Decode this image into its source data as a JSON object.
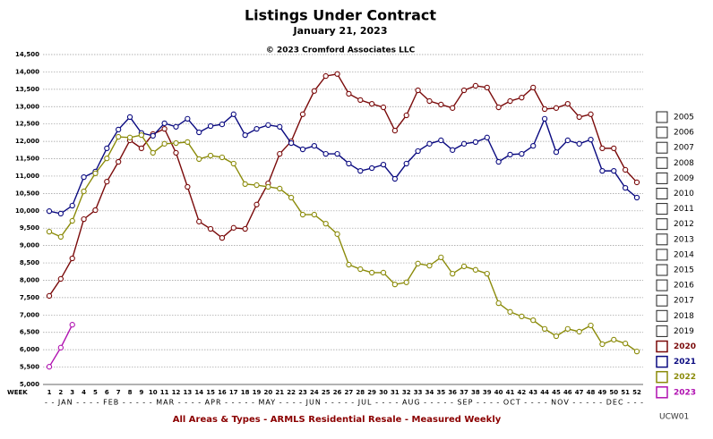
{
  "chart_data": {
    "type": "line",
    "title": "Listings Under Contract",
    "subtitle": "January 21, 2023",
    "copyright": "© 2023 Cromford Associates LLC",
    "footer": "All Areas & Types - ARMLS Residential Resale - Measured Weekly",
    "code": "UCW01",
    "x_label": "WEEK",
    "month_line": "- - JAN - - - - FEB - - - - - MAR - - - - APR - - - - - MAY - - - - JUN - - - - - JUL - - - - AUG - - - - - SEP - - - - OCT - - - - NOV - - - - - DEC - - -",
    "x": [
      1,
      2,
      3,
      4,
      5,
      6,
      7,
      8,
      9,
      10,
      11,
      12,
      13,
      14,
      15,
      16,
      17,
      18,
      19,
      20,
      21,
      22,
      23,
      24,
      25,
      26,
      27,
      28,
      29,
      30,
      31,
      32,
      33,
      34,
      35,
      36,
      37,
      38,
      39,
      40,
      41,
      42,
      43,
      44,
      45,
      46,
      47,
      48,
      49,
      50,
      51,
      52
    ],
    "xlim": [
      1,
      52
    ],
    "ylim": [
      5000,
      14500
    ],
    "yticks": [
      {
        "value": 5000,
        "label": "5,000"
      },
      {
        "value": 5500,
        "label": "5,500"
      },
      {
        "value": 6000,
        "label": "6,000"
      },
      {
        "value": 6500,
        "label": "6,500"
      },
      {
        "value": 7000,
        "label": "7,000"
      },
      {
        "value": 7500,
        "label": "7,500"
      },
      {
        "value": 8000,
        "label": "8,000"
      },
      {
        "value": 8500,
        "label": "8,500"
      },
      {
        "value": 9000,
        "label": "9,000"
      },
      {
        "value": 9500,
        "label": "9,500"
      },
      {
        "value": 10000,
        "label": "10,000"
      },
      {
        "value": 10500,
        "label": "10,500"
      },
      {
        "value": 11000,
        "label": "11,000"
      },
      {
        "value": 11500,
        "label": "11,500"
      },
      {
        "value": 12000,
        "label": "12,000"
      },
      {
        "value": 12500,
        "label": "12,500"
      },
      {
        "value": 13000,
        "label": "13,000"
      },
      {
        "value": 13500,
        "label": "13,500"
      },
      {
        "value": 14000,
        "label": "14,000"
      },
      {
        "value": 14500,
        "label": "14,500"
      }
    ],
    "grid": true,
    "legend_inactive": [
      "2005",
      "2006",
      "2007",
      "2008",
      "2009",
      "2010",
      "2011",
      "2012",
      "2013",
      "2014",
      "2015",
      "2016",
      "2017",
      "2018",
      "2019"
    ],
    "series": [
      {
        "name": "2020",
        "color": "#7a0a0a",
        "values": [
          7550,
          8040,
          8630,
          9760,
          10020,
          10840,
          11410,
          12030,
          11800,
          12210,
          12360,
          11670,
          10690,
          9690,
          9480,
          9220,
          9510,
          9480,
          10180,
          10790,
          11640,
          12000,
          12780,
          13450,
          13880,
          13940,
          13370,
          13190,
          13080,
          12980,
          12310,
          12750,
          13470,
          13160,
          13060,
          12960,
          13470,
          13600,
          13550,
          12980,
          13160,
          13260,
          13550,
          12930,
          12960,
          13080,
          12700,
          12780,
          11800,
          11800,
          11180,
          10820
        ]
      },
      {
        "name": "2021",
        "color": "#0a0a80",
        "values": [
          9990,
          9920,
          10150,
          10970,
          11130,
          11800,
          12340,
          12700,
          12240,
          12160,
          12520,
          12420,
          12650,
          12260,
          12440,
          12490,
          12780,
          12180,
          12360,
          12470,
          12420,
          11950,
          11770,
          11870,
          11640,
          11640,
          11360,
          11150,
          11230,
          11330,
          10920,
          11360,
          11720,
          11930,
          12030,
          11750,
          11930,
          11980,
          12110,
          11410,
          11620,
          11640,
          11870,
          12650,
          11690,
          12030,
          11930,
          12050,
          11150,
          11150,
          10660,
          10380
        ]
      },
      {
        "name": "2022",
        "color": "#8b8b0a",
        "values": [
          9400,
          9250,
          9710,
          10560,
          11080,
          11510,
          12130,
          12110,
          12180,
          11670,
          11930,
          11950,
          11980,
          11490,
          11590,
          11540,
          11360,
          10770,
          10740,
          10690,
          10640,
          10380,
          9890,
          9890,
          9630,
          9330,
          8450,
          8320,
          8220,
          8220,
          7880,
          7940,
          8480,
          8420,
          8660,
          8190,
          8400,
          8300,
          8190,
          7340,
          7090,
          6960,
          6850,
          6600,
          6390,
          6600,
          6520,
          6700,
          6160,
          6290,
          6180,
          5950
        ]
      },
      {
        "name": "2023",
        "color": "#b010b0",
        "values": [
          5510,
          6060,
          6720,
          null,
          null,
          null,
          null,
          null,
          null,
          null,
          null,
          null,
          null,
          null,
          null,
          null,
          null,
          null,
          null,
          null,
          null,
          null,
          null,
          null,
          null,
          null,
          null,
          null,
          null,
          null,
          null,
          null,
          null,
          null,
          null,
          null,
          null,
          null,
          null,
          null,
          null,
          null,
          null,
          null,
          null,
          null,
          null,
          null,
          null,
          null,
          null,
          null
        ]
      }
    ]
  }
}
